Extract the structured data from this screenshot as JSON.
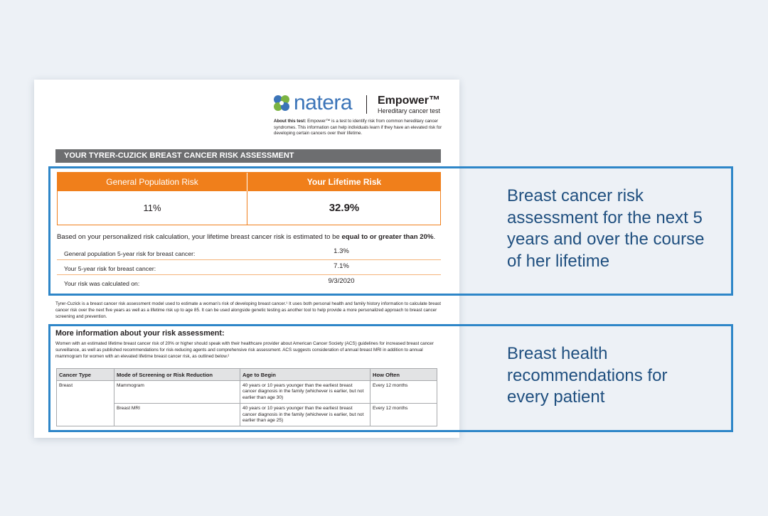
{
  "header": {
    "brand": "natera",
    "product": "Empower™",
    "product_sub": "Hereditary cancer test",
    "about_label": "About this test:",
    "about_text": " Empower™ is a test to identify risk from common hereditary cancer syndromes. This information can help individuals learn if they have an elevated risk for developing certain cancers over their lifetime."
  },
  "section_title": "YOUR TYRER-CUZICK BREAST CANCER RISK ASSESSMENT",
  "risk": {
    "general_label": "General Population Risk",
    "your_label": "Your Lifetime Risk",
    "general_value": "11%",
    "your_value": "32.9%"
  },
  "statement": {
    "text": "Based on your personalized risk calculation, your lifetime breast cancer risk is estimated to be ",
    "emphasis": "equal to or greater than 20%",
    "end": "."
  },
  "details": [
    {
      "label": "General population 5-year risk for breast cancer:",
      "value": "1.3%"
    },
    {
      "label": "Your 5-year risk for breast cancer:",
      "value": "7.1%"
    },
    {
      "label": "Your risk was calculated on:",
      "value": "9/3/2020"
    }
  ],
  "description": "Tyrer-Cuzick is a breast cancer risk assessment model used to estimate a woman’s risk of developing breast cancer.¹ It uses both personal health and family history information to calculate breast cancer risk over the next five years as well as a lifetime risk up to age 85. It can be used alongside genetic testing as another tool to help provide a more personalized approach to breast cancer screening and prevention.",
  "more_info": {
    "title": "More information about your risk assessment:",
    "text": "Women with an estimated lifetime breast cancer risk of 20% or higher should speak with their healthcare provider about American Cancer Society (ACS) guidelines for increased breast cancer surveillance,  as well as published recommendations for risk-reducing agents and comprehensive risk assessment. ACS suggests consideration of annual breast MRI in addition to annual mammogram for women with an elevated lifetime breast cancer risk, as outlined below.²"
  },
  "rec_table": {
    "headers": [
      "Cancer Type",
      "Mode of Screening or Risk Reduction",
      "Age to Begin",
      "How Often"
    ],
    "cancer_type": "Breast",
    "rows": [
      {
        "mode": "Mammogram",
        "age": "40 years or 10 years younger than the earliest breast cancer diagnosis in the family (whichever is earlier, but not earlier than age 30)",
        "often": "Every 12 months"
      },
      {
        "mode": "Breast MRI",
        "age": "40 years or 10 years younger than the earliest breast cancer diagnosis in the family (whichever is earlier, but not earlier than age 25)",
        "often": "Every 12 months"
      }
    ]
  },
  "callouts": {
    "first": "Breast cancer risk assessment for the next 5 years and over the course of her lifetime",
    "second": "Breast health recommendations for every patient"
  },
  "colors": {
    "accent_orange": "#f07f1b",
    "highlight_blue": "#2e86c8",
    "callout_text": "#1f4f7f",
    "bar_gray": "#6d6e70"
  }
}
